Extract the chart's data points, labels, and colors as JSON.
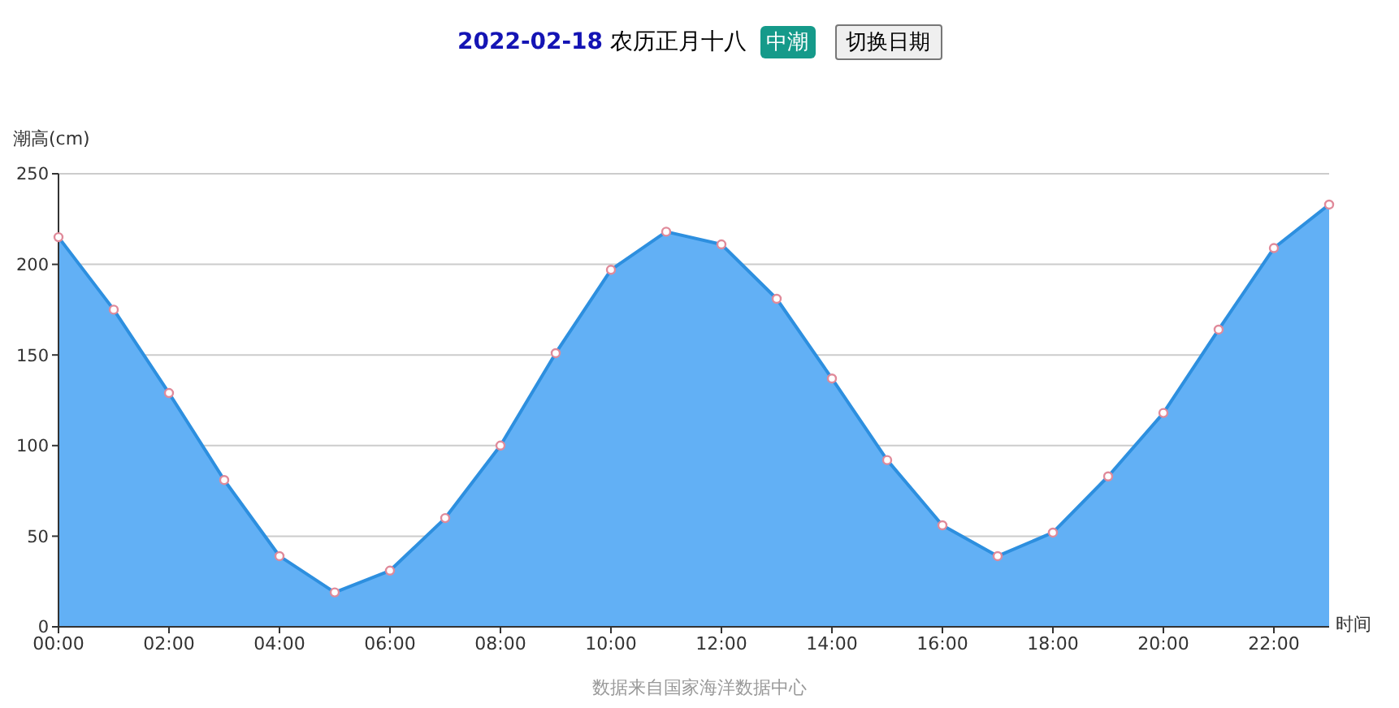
{
  "chart_data": {
    "type": "area",
    "title": "2022-02-18 农历正月十八",
    "ylabel": "潮高(cm)",
    "xlabel": "时间",
    "annotations": [
      "中潮",
      "切换日期",
      "数据来自国家海洋数据中心"
    ],
    "categories": [
      "00:00",
      null,
      "02:00",
      null,
      "04:00",
      null,
      "06:00",
      null,
      "08:00",
      null,
      "10:00",
      null,
      "12:00",
      null,
      "14:00",
      null,
      "16:00",
      null,
      "18:00",
      null,
      "20:00",
      null,
      "22:00",
      null
    ],
    "series": [
      {
        "color": "#2d8fdf",
        "values": [
          215,
          175,
          129,
          81,
          39,
          19,
          31,
          60,
          100,
          151,
          197,
          218,
          211,
          181,
          137,
          92,
          56,
          39,
          52,
          83,
          118,
          164,
          209,
          233
        ]
      }
    ],
    "ylim": [
      0,
      250
    ],
    "yticks": [
      0,
      50,
      100,
      150,
      200,
      250
    ],
    "grid": "y",
    "marker": "circle",
    "line_style": "solid"
  }
}
